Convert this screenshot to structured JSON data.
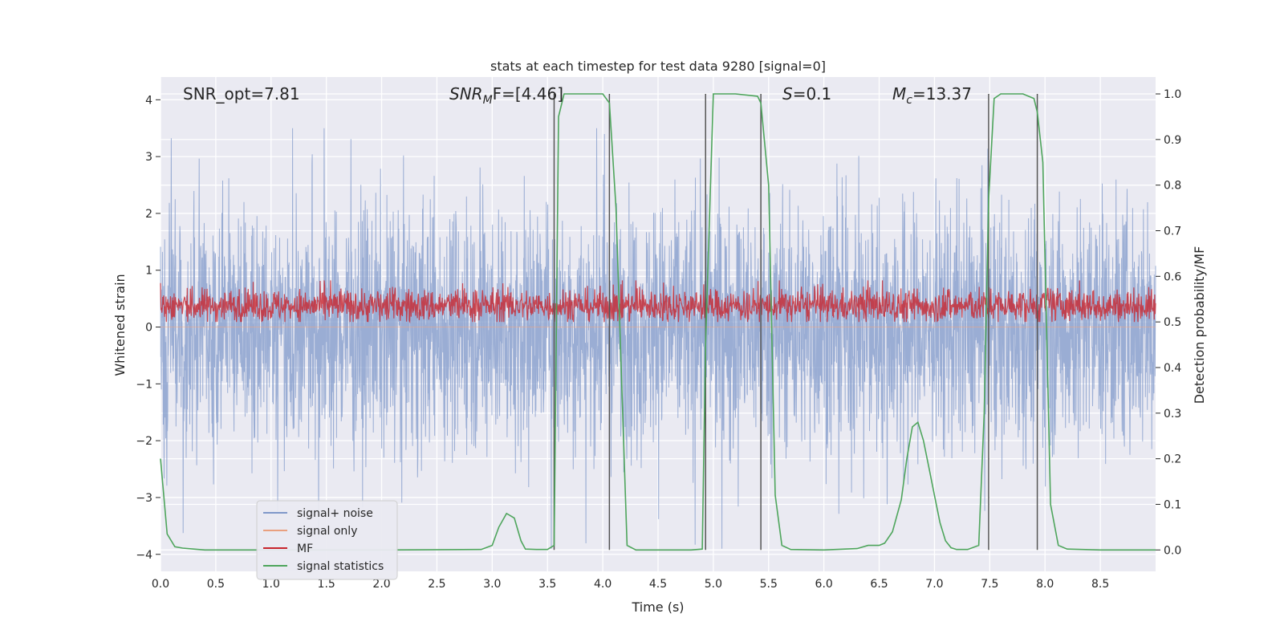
{
  "chart_data": {
    "type": "line",
    "title": "stats at each timestep for test data 9280 [signal=0]",
    "xlabel": "Time (s)",
    "ylabel_left": "Whitened strain",
    "ylabel_right": "Detection probability/MF",
    "xlim": [
      0.0,
      9.0
    ],
    "ylim_left": [
      -4.3,
      4.4
    ],
    "ylim_right": [
      -0.047,
      1.037
    ],
    "xticks": [
      "0.0",
      "0.5",
      "1.0",
      "1.5",
      "2.0",
      "2.5",
      "3.0",
      "3.5",
      "4.0",
      "4.5",
      "5.0",
      "5.5",
      "6.0",
      "6.5",
      "7.0",
      "7.5",
      "8.0",
      "8.5"
    ],
    "yticks_left": [
      "−4",
      "−3",
      "−2",
      "−1",
      "0",
      "1",
      "2",
      "3",
      "4"
    ],
    "yticks_right": [
      "0.0",
      "0.1",
      "0.2",
      "0.3",
      "0.4",
      "0.5",
      "0.6",
      "0.7",
      "0.8",
      "0.9",
      "1.0"
    ],
    "grid": true,
    "background": "#eaeaf2",
    "annotations": [
      "SNR_opt=7.81",
      "SNR",
      "M",
      "F=[4.46]",
      "S",
      "=0.1",
      "M",
      "c",
      "=13.37"
    ],
    "legend": {
      "placement": "lower-left",
      "entries": [
        {
          "label": "signal+ noise",
          "color": "#7f98c9"
        },
        {
          "label": "signal only",
          "color": "#e9a07f"
        },
        {
          "label": "MF",
          "color": "#c8242d"
        },
        {
          "label": "signal statistics",
          "color": "#4ea55c"
        }
      ]
    },
    "vlines_x": [
      3.56,
      4.06,
      4.93,
      5.43,
      7.49,
      7.93
    ],
    "series": [
      {
        "name": "signal statistics",
        "axis": "right",
        "color": "#4ea55c",
        "x": [
          0.0,
          0.06,
          0.13,
          0.2,
          0.3,
          0.4,
          0.5,
          1.0,
          2.0,
          2.9,
          3.0,
          3.06,
          3.13,
          3.2,
          3.26,
          3.3,
          3.4,
          3.5,
          3.56,
          3.6,
          3.65,
          3.7,
          3.8,
          4.0,
          4.06,
          4.12,
          4.18,
          4.22,
          4.3,
          4.5,
          4.8,
          4.9,
          4.93,
          5.0,
          5.2,
          5.4,
          5.43,
          5.5,
          5.56,
          5.62,
          5.7,
          6.0,
          6.3,
          6.4,
          6.5,
          6.55,
          6.62,
          6.7,
          6.75,
          6.8,
          6.85,
          6.9,
          6.95,
          7.0,
          7.05,
          7.1,
          7.15,
          7.2,
          7.3,
          7.4,
          7.45,
          7.49,
          7.54,
          7.6,
          7.7,
          7.8,
          7.9,
          7.93,
          7.98,
          8.05,
          8.12,
          8.2,
          8.5,
          9.0
        ],
        "y": [
          0.2,
          0.035,
          0.007,
          0.004,
          0.002,
          0.0,
          0.0,
          0.0,
          0.0,
          0.001,
          0.01,
          0.05,
          0.08,
          0.07,
          0.02,
          0.002,
          0.001,
          0.001,
          0.01,
          0.95,
          1.0,
          1.0,
          1.0,
          1.0,
          0.98,
          0.75,
          0.3,
          0.01,
          0.0,
          0.0,
          0.0,
          0.002,
          0.45,
          1.0,
          1.0,
          0.995,
          0.98,
          0.8,
          0.12,
          0.01,
          0.001,
          0.0,
          0.003,
          0.01,
          0.01,
          0.015,
          0.04,
          0.11,
          0.2,
          0.27,
          0.28,
          0.24,
          0.18,
          0.12,
          0.06,
          0.02,
          0.005,
          0.001,
          0.001,
          0.01,
          0.3,
          0.77,
          0.99,
          1.0,
          1.0,
          1.0,
          0.99,
          0.96,
          0.85,
          0.1,
          0.01,
          0.002,
          0.0,
          0.0
        ]
      },
      {
        "name": "MF",
        "axis": "right",
        "color": "#c8242d",
        "note_range": [
          0.5,
          0.59
        ]
      },
      {
        "name": "signal+ noise",
        "axis": "left",
        "color": "#7f98c9",
        "note_range": [
          -3.9,
          3.5
        ]
      },
      {
        "name": "signal only",
        "axis": "left",
        "color": "#e9a07f"
      }
    ]
  }
}
